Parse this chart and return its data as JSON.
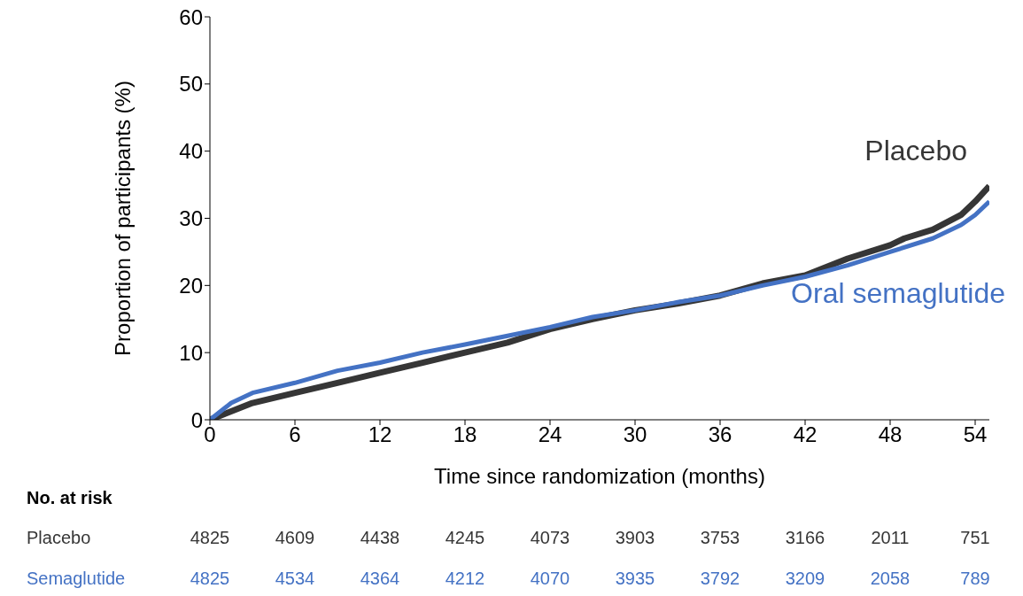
{
  "chart_data": {
    "type": "line",
    "xlabel": "Time since randomization (months)",
    "ylabel": "Proportion of participants (%)",
    "xlim": [
      0,
      55
    ],
    "xticks": [
      0,
      6,
      12,
      18,
      24,
      30,
      36,
      42,
      48,
      54
    ],
    "ylim": [
      0,
      60
    ],
    "yticks": [
      0,
      10,
      20,
      30,
      40,
      50,
      60
    ],
    "marker": "none",
    "line_style": "solid",
    "series": [
      {
        "name": "Placebo",
        "color": "#363636",
        "x": [
          0,
          3,
          6,
          9,
          12,
          15,
          18,
          21,
          24,
          27,
          30,
          33,
          36,
          39,
          42,
          45,
          48,
          49,
          51,
          53,
          54,
          55
        ],
        "values": [
          0,
          2.5,
          4,
          5.5,
          7,
          8.5,
          10,
          11.5,
          13.5,
          15,
          16.3,
          17.3,
          18.5,
          20.3,
          21.5,
          24,
          26,
          27,
          28.3,
          30.5,
          32.5,
          34.8
        ]
      },
      {
        "name": "Oral semaglutide",
        "color": "#4472c4",
        "x": [
          0,
          1.5,
          3,
          6,
          9,
          12,
          15,
          18,
          21,
          24,
          27,
          30,
          33,
          36,
          39,
          42,
          45,
          48,
          51,
          53,
          54,
          55
        ],
        "values": [
          0,
          2.5,
          4,
          5.5,
          7.3,
          8.5,
          10,
          11.2,
          12.5,
          13.8,
          15.3,
          16.3,
          17.5,
          18.5,
          20,
          21.3,
          23,
          25,
          27,
          29,
          30.5,
          32.5
        ]
      }
    ],
    "annotations": [
      "No. at risk",
      "Placebo",
      "4825",
      "4609",
      "4438",
      "4245",
      "4073",
      "3903",
      "3753",
      "3166",
      "2011",
      "751",
      "Semaglutide",
      "4825",
      "4534",
      "4364",
      "4212",
      "4070",
      "3935",
      "3792",
      "3209",
      "2058",
      "789"
    ]
  }
}
